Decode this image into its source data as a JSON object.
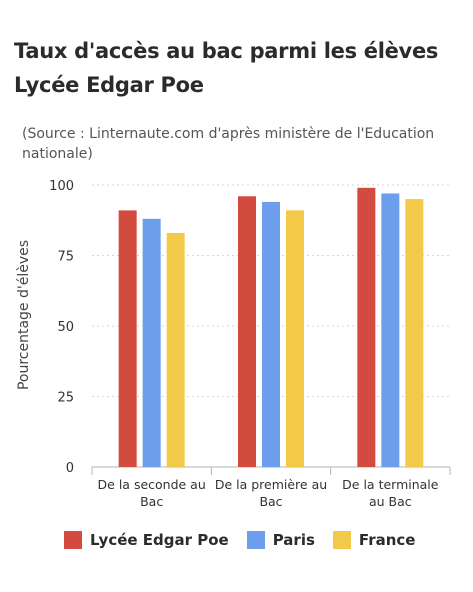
{
  "chart_data": {
    "type": "bar",
    "title_line1": "Taux d'accès au bac parmi les élèves",
    "title_line2": "Lycée Edgar Poe",
    "subtitle": "(Source : Linternaute.com d'après ministère de l'Education nationale)",
    "xlabel": "",
    "ylabel": "Pourcentage d'élèves",
    "ylim": [
      0,
      100
    ],
    "yticks": [
      0,
      25,
      50,
      75,
      100
    ],
    "grid": true,
    "legend_position": "bottom",
    "categories": [
      "De la seconde au Bac",
      "De la première au Bac",
      "De la terminale au Bac"
    ],
    "category_lines": [
      [
        "De la seconde au",
        "Bac"
      ],
      [
        "De la première au",
        "Bac"
      ],
      [
        "De la terminale",
        "au Bac"
      ]
    ],
    "series": [
      {
        "name": "Lycée Edgar Poe",
        "color": "#d24b3e",
        "values": [
          91,
          96,
          99
        ]
      },
      {
        "name": "Paris",
        "color": "#6d9eeb",
        "values": [
          88,
          94,
          97
        ]
      },
      {
        "name": "France",
        "color": "#f3c94a",
        "values": [
          83,
          91,
          95
        ]
      }
    ]
  }
}
